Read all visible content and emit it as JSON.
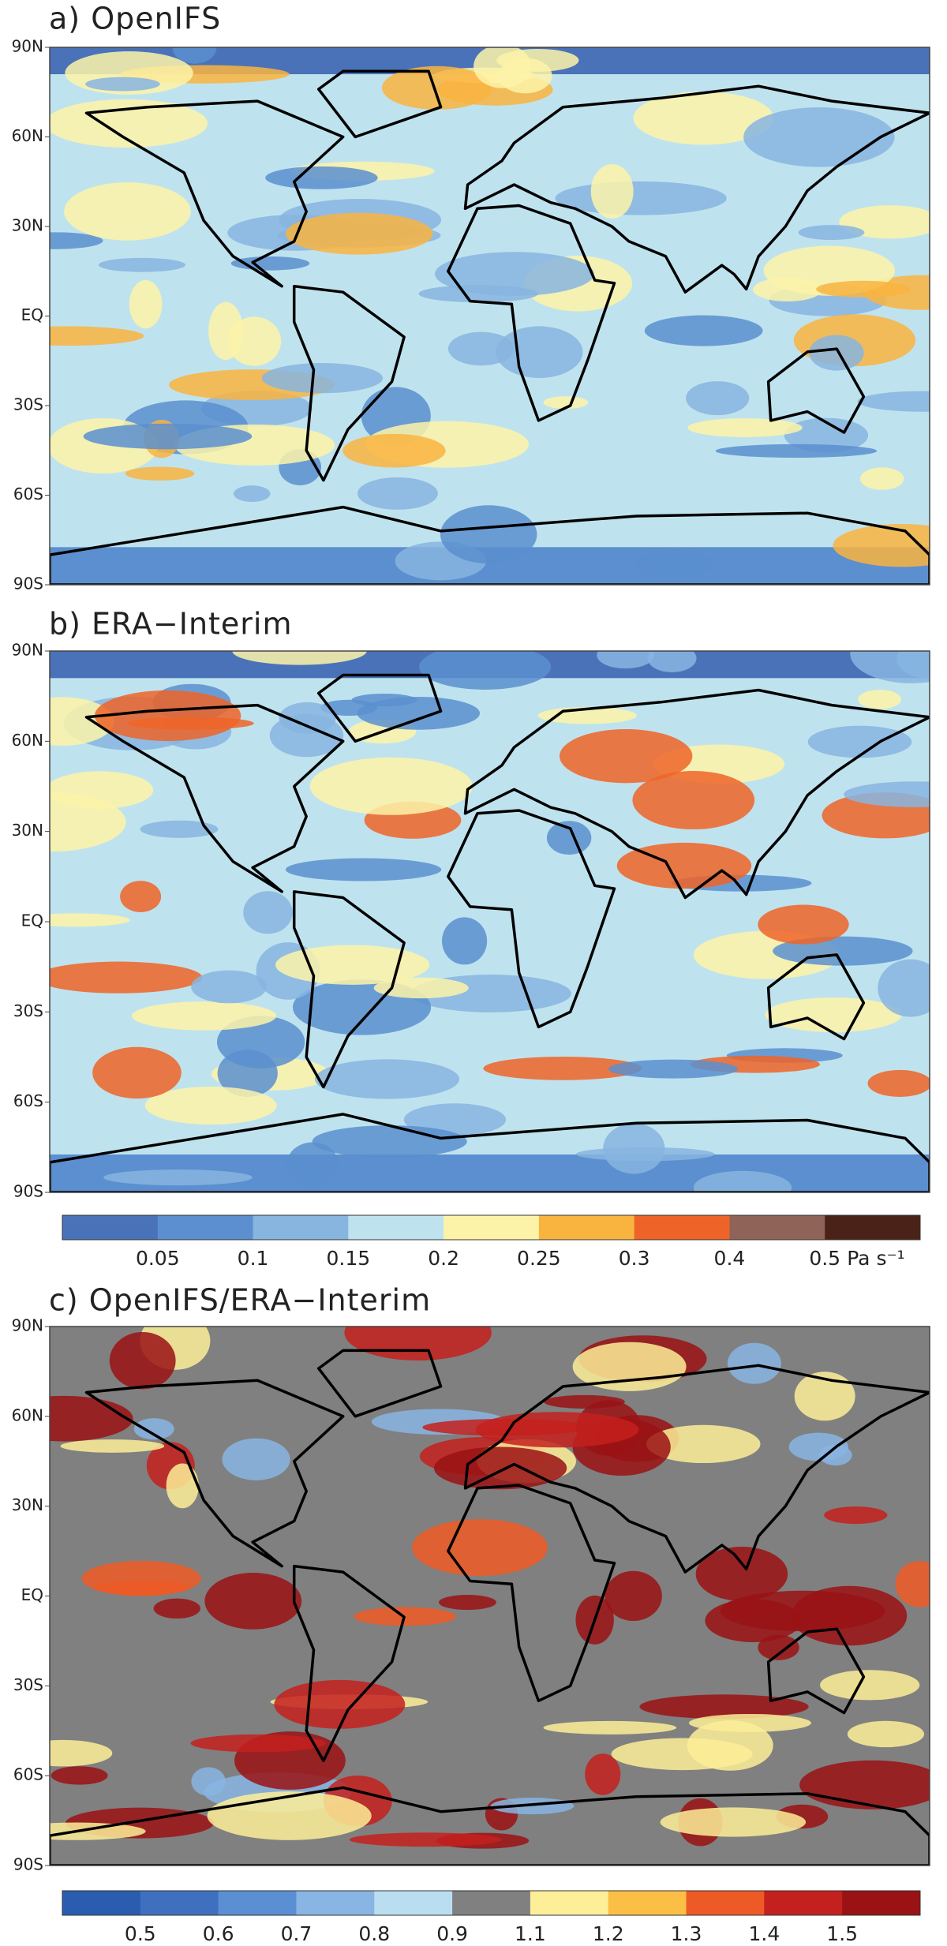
{
  "latitude_labels": [
    "90N",
    "60N",
    "30N",
    "EQ",
    "30S",
    "60S",
    "90S"
  ],
  "panels": [
    {
      "title": "a) OpenIFS"
    },
    {
      "title": "b) ERA−Interim"
    },
    {
      "title": "c) OpenIFS/ERA−Interim"
    }
  ],
  "colorbars": [
    {
      "colors": [
        "#4a72b8",
        "#5b8fcf",
        "#87b5e0",
        "#bfe3ee",
        "#fdf3a8",
        "#f9b440",
        "#ee6428",
        "#8f6357",
        "#4a2217"
      ],
      "ticks": [
        0.05,
        0.1,
        0.15,
        0.2,
        0.25,
        0.3,
        0.4,
        0.5
      ],
      "unit": "Pa s⁻¹"
    },
    {
      "colors": [
        "#2a5db0",
        "#3f70c0",
        "#5b8fd4",
        "#88b5e3",
        "#b9def0",
        "#808080",
        "#fdee98",
        "#fbbf45",
        "#ee5a26",
        "#c4201d",
        "#9a1214"
      ],
      "ticks": [
        0.5,
        0.6,
        0.7,
        0.8,
        0.9,
        1.1,
        1.2,
        1.3,
        1.4,
        1.5
      ]
    }
  ]
}
